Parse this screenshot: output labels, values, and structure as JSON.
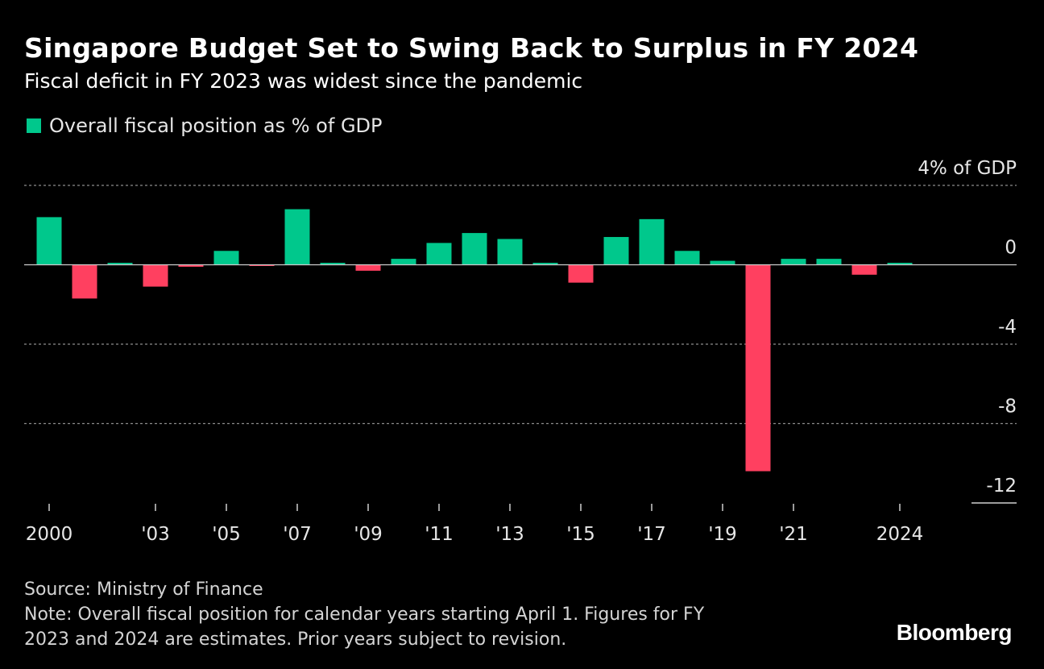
{
  "header": {
    "title": "Singapore Budget Set to Swing Back to Surplus in FY 2024",
    "subtitle": "Fiscal deficit in FY 2023 was widest since the pandemic"
  },
  "legend": {
    "label": "Overall fiscal position as % of GDP"
  },
  "colors": {
    "positive": "#00c88c",
    "negative": "#ff4060",
    "zero_line": "#cccccc",
    "grid": "#8c8c8c"
  },
  "chart_data": {
    "type": "bar",
    "categories": [
      "2000",
      "2001",
      "2002",
      "2003",
      "2004",
      "2005",
      "2006",
      "2007",
      "2008",
      "2009",
      "2010",
      "2011",
      "2012",
      "2013",
      "2014",
      "2015",
      "2016",
      "2017",
      "2018",
      "2019",
      "2020",
      "2021",
      "2022",
      "2023",
      "2024"
    ],
    "values": [
      2.4,
      -1.7,
      0.1,
      -1.1,
      -0.1,
      0.7,
      -0.05,
      2.8,
      0.1,
      -0.3,
      0.3,
      1.1,
      1.6,
      1.3,
      0.1,
      -0.9,
      1.4,
      2.3,
      0.7,
      0.2,
      -10.4,
      0.3,
      0.3,
      -0.5,
      0.1
    ],
    "title": "Singapore Budget Set to Swing Back to Surplus in FY 2024",
    "ylabel": "% of GDP",
    "ylim": [
      -12,
      4
    ],
    "yticks": [
      4,
      0,
      -4,
      -8,
      -12
    ],
    "ytick_labels": [
      "4% of GDP",
      "0",
      "-4",
      "-8",
      "-12"
    ],
    "xtick_years": [
      "2000",
      "2003",
      "2005",
      "2007",
      "2009",
      "2011",
      "2013",
      "2015",
      "2017",
      "2019",
      "2021",
      "2024"
    ],
    "xtick_labels": [
      "2000",
      "'03",
      "'05",
      "'07",
      "'09",
      "'11",
      "'13",
      "'15",
      "'17",
      "'19",
      "'21",
      "2024"
    ]
  },
  "footer": {
    "source": "Source: Ministry of Finance",
    "note_line1": "Note: Overall fiscal position for calendar years starting April 1. Figures for FY",
    "note_line2": "2023 and 2024 are estimates. Prior years subject to revision."
  },
  "brand": "Bloomberg"
}
